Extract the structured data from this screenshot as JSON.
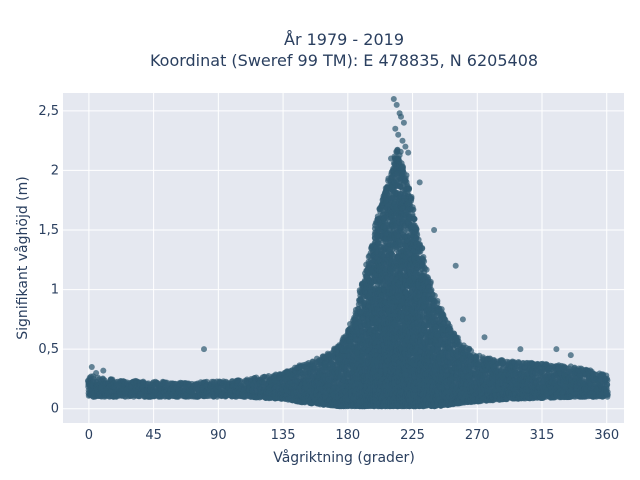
{
  "chart_data": {
    "type": "scatter",
    "title_lines": [
      "År 1979 - 2019",
      "Koordinat (Sweref 99 TM): E 478835, N 6205408"
    ],
    "xlabel": "Vågriktning (grader)",
    "ylabel": "Signifikant våghöjd (m)",
    "xlim": [
      -18,
      372
    ],
    "ylim": [
      -0.12,
      2.65
    ],
    "x_ticks": [
      0,
      45,
      90,
      135,
      180,
      225,
      270,
      315,
      360
    ],
    "x_tick_labels": [
      "0",
      "45",
      "90",
      "135",
      "180",
      "225",
      "270",
      "315",
      "360"
    ],
    "y_ticks": [
      0,
      0.5,
      1,
      1.5,
      2,
      2.5
    ],
    "y_tick_labels": [
      "0",
      "0,5",
      "1",
      "1,5",
      "2",
      "2,5"
    ],
    "grid": true,
    "marker_color": "#2f5a72",
    "plot_bg": "#e5e8f0",
    "envelope": {
      "x": [
        0,
        20,
        45,
        70,
        90,
        110,
        135,
        150,
        165,
        175,
        185,
        195,
        200,
        205,
        210,
        215,
        220,
        225,
        230,
        235,
        240,
        250,
        260,
        270,
        290,
        315,
        340,
        360
      ],
      "upper": [
        0.28,
        0.24,
        0.23,
        0.22,
        0.23,
        0.25,
        0.3,
        0.38,
        0.45,
        0.55,
        0.8,
        1.3,
        1.6,
        1.8,
        2.0,
        2.2,
        2.0,
        1.7,
        1.4,
        1.15,
        0.95,
        0.7,
        0.55,
        0.45,
        0.4,
        0.38,
        0.35,
        0.28
      ],
      "lower": [
        0.1,
        0.1,
        0.1,
        0.1,
        0.1,
        0.1,
        0.08,
        0.05,
        0.03,
        0.02,
        0.02,
        0.02,
        0.02,
        0.02,
        0.02,
        0.02,
        0.02,
        0.02,
        0.02,
        0.02,
        0.02,
        0.03,
        0.05,
        0.06,
        0.08,
        0.09,
        0.1,
        0.1
      ]
    },
    "outliers": {
      "x": [
        2,
        5,
        10,
        80,
        212,
        214,
        216,
        217,
        219,
        213,
        215,
        218,
        220,
        222,
        210,
        230,
        240,
        255,
        260,
        275,
        300,
        325,
        335
      ],
      "y": [
        0.35,
        0.3,
        0.32,
        0.5,
        2.6,
        2.55,
        2.48,
        2.45,
        2.4,
        2.35,
        2.3,
        2.25,
        2.2,
        2.15,
        2.1,
        1.9,
        1.5,
        1.2,
        0.75,
        0.6,
        0.5,
        0.5,
        0.45
      ]
    }
  }
}
